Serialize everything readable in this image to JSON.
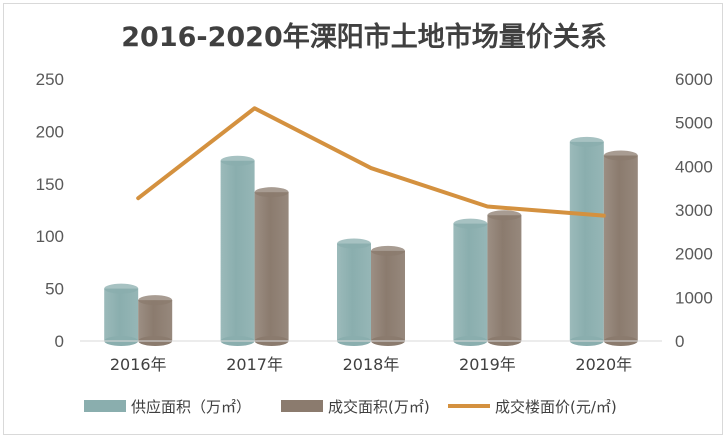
{
  "chart_data": {
    "type": "bar",
    "title": "2016-2020年溧阳市土地市场量价关系",
    "categories": [
      "2016年",
      "2017年",
      "2018年",
      "2019年",
      "2020年"
    ],
    "series": [
      {
        "name": "供应面积（万㎡）",
        "type": "bar",
        "axis": "left",
        "color": "#8aaeae",
        "values": [
          50,
          172,
          93,
          112,
          190
        ]
      },
      {
        "name": "成交面积(万㎡)",
        "type": "bar",
        "axis": "left",
        "color": "#8b7b6e",
        "values": [
          39,
          142,
          86,
          120,
          177
        ]
      },
      {
        "name": "成交楼面价(元/㎡)",
        "type": "line",
        "axis": "right",
        "color": "#d4913f",
        "values": [
          3270,
          5330,
          3960,
          3080,
          2870
        ]
      }
    ],
    "y_left": {
      "range": [
        0,
        250
      ],
      "ticks": [
        "0",
        "50",
        "100",
        "150",
        "200",
        "250"
      ]
    },
    "y_right": {
      "range": [
        0,
        6000
      ],
      "ticks": [
        "0",
        "1000",
        "2000",
        "3000",
        "4000",
        "5000",
        "6000"
      ]
    },
    "grid": false,
    "legend_position": "bottom"
  }
}
